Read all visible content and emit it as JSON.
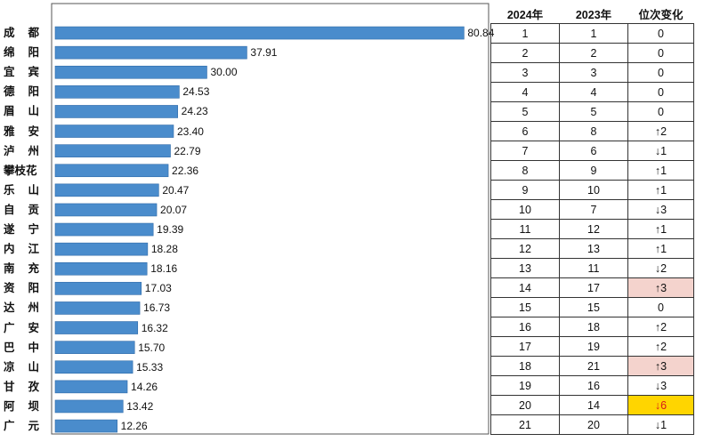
{
  "chart_data": {
    "type": "bar",
    "orientation": "horizontal",
    "title": "",
    "xlabel": "",
    "ylabel": "",
    "xlim": [
      0,
      85
    ],
    "grid": false,
    "colors": {
      "bar": "#4a8ccc",
      "highlight_pink": "#f4d3cd",
      "highlight_yellow": "#ffd500",
      "down_red": "#d61a1a"
    },
    "categories": [
      "成都",
      "绵阳",
      "宜宾",
      "德阳",
      "眉山",
      "雅安",
      "泸州",
      "攀枝花",
      "乐山",
      "自贡",
      "遂宁",
      "内江",
      "南充",
      "资阳",
      "达州",
      "广安",
      "巴中",
      "凉山",
      "甘孜",
      "阿坝",
      "广元"
    ],
    "values": [
      80.84,
      37.91,
      30.0,
      24.53,
      24.23,
      23.4,
      22.79,
      22.36,
      20.47,
      20.07,
      19.39,
      18.28,
      18.16,
      17.03,
      16.73,
      16.32,
      15.7,
      15.33,
      14.26,
      13.42,
      12.26
    ],
    "value_labels": [
      "80.84",
      "37.91",
      "30.00",
      "24.53",
      "24.23",
      "23.40",
      "22.79",
      "22.36",
      "20.47",
      "20.07",
      "19.39",
      "18.28",
      "18.16",
      "17.03",
      "16.73",
      "16.32",
      "15.70",
      "15.33",
      "14.26",
      "13.42",
      "12.26"
    ]
  },
  "table": {
    "headers": [
      "2024年",
      "2023年",
      "位次变化"
    ],
    "rows": [
      {
        "r2024": "1",
        "r2023": "1",
        "change": "0",
        "highlight": ""
      },
      {
        "r2024": "2",
        "r2023": "2",
        "change": "0",
        "highlight": ""
      },
      {
        "r2024": "3",
        "r2023": "3",
        "change": "0",
        "highlight": ""
      },
      {
        "r2024": "4",
        "r2023": "4",
        "change": "0",
        "highlight": ""
      },
      {
        "r2024": "5",
        "r2023": "5",
        "change": "0",
        "highlight": ""
      },
      {
        "r2024": "6",
        "r2023": "8",
        "change": "↑2",
        "highlight": ""
      },
      {
        "r2024": "7",
        "r2023": "6",
        "change": "↓1",
        "highlight": ""
      },
      {
        "r2024": "8",
        "r2023": "9",
        "change": "↑1",
        "highlight": ""
      },
      {
        "r2024": "9",
        "r2023": "10",
        "change": "↑1",
        "highlight": ""
      },
      {
        "r2024": "10",
        "r2023": "7",
        "change": "↓3",
        "highlight": ""
      },
      {
        "r2024": "11",
        "r2023": "12",
        "change": "↑1",
        "highlight": ""
      },
      {
        "r2024": "12",
        "r2023": "13",
        "change": "↑1",
        "highlight": ""
      },
      {
        "r2024": "13",
        "r2023": "11",
        "change": "↓2",
        "highlight": ""
      },
      {
        "r2024": "14",
        "r2023": "17",
        "change": "↑3",
        "highlight": "pink"
      },
      {
        "r2024": "15",
        "r2023": "15",
        "change": "0",
        "highlight": ""
      },
      {
        "r2024": "16",
        "r2023": "18",
        "change": "↑2",
        "highlight": ""
      },
      {
        "r2024": "17",
        "r2023": "19",
        "change": "↑2",
        "highlight": ""
      },
      {
        "r2024": "18",
        "r2023": "21",
        "change": "↑3",
        "highlight": "pink"
      },
      {
        "r2024": "19",
        "r2023": "16",
        "change": "↓3",
        "highlight": ""
      },
      {
        "r2024": "20",
        "r2023": "14",
        "change": "↓6",
        "highlight": "yellow"
      },
      {
        "r2024": "21",
        "r2023": "20",
        "change": "↓1",
        "highlight": ""
      }
    ]
  }
}
